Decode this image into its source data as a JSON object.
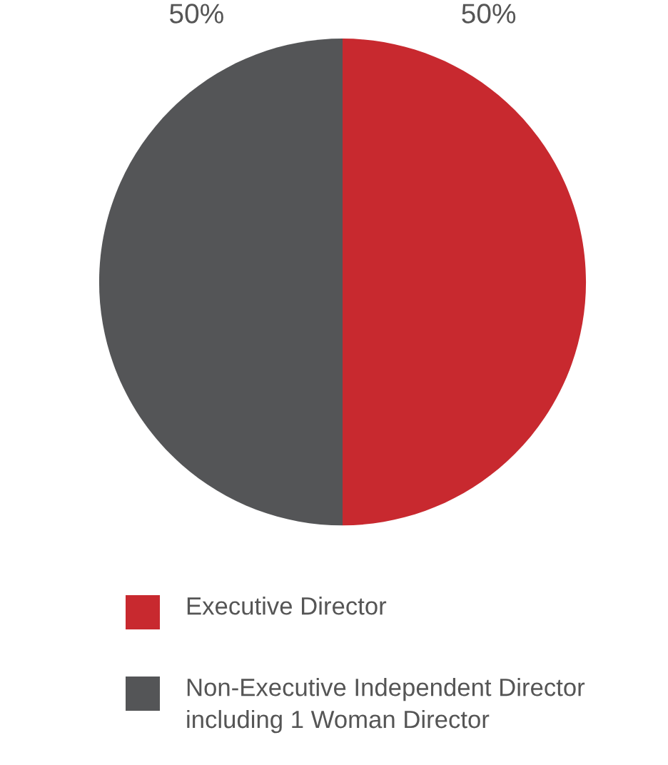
{
  "chart_data": {
    "type": "pie",
    "categories": [
      "Executive Director",
      "Non-Executive Independent Director including 1 Woman Director"
    ],
    "values": [
      50,
      50
    ],
    "colors": [
      "#c8292f",
      "#545557"
    ],
    "value_labels": [
      "50%",
      "50%"
    ],
    "legend": "bottom"
  }
}
